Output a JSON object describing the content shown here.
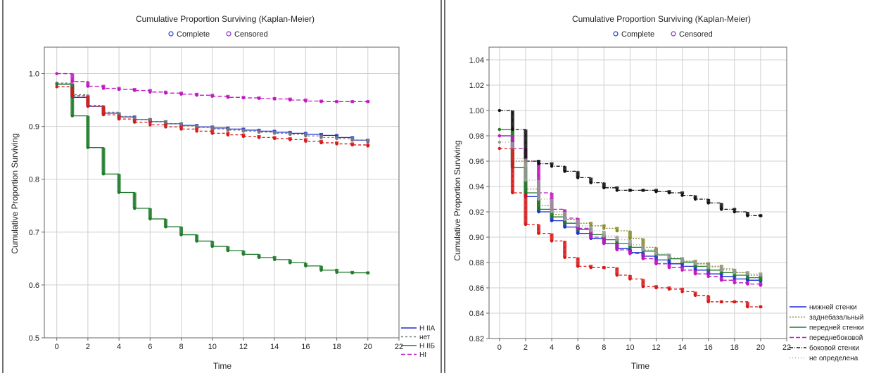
{
  "colors": {
    "panel_divider": "#6f6f6f",
    "grid": "#d0d0d0",
    "frame": "#666666",
    "complete_marker": "#1e3fc0",
    "censored_marker": "#8a2cc9"
  },
  "chart_data": [
    {
      "type": "line",
      "subtype": "kaplan-meier",
      "title": "Cumulative Proportion Surviving (Kaplan-Meier)",
      "marker_legend": {
        "complete": "Complete",
        "censored": "Censored"
      },
      "xlabel": "Time",
      "ylabel": "Cumulative Proportion Surviving",
      "xlim": [
        -0.8,
        22
      ],
      "ylim": [
        0.5,
        1.05
      ],
      "x_ticks": [
        0,
        2,
        4,
        6,
        8,
        10,
        12,
        14,
        16,
        18,
        20,
        22
      ],
      "y_ticks": [
        0.5,
        0.6,
        0.7,
        0.8,
        0.9,
        1.0
      ],
      "y_tick_labels": [
        "0.5",
        "0.6",
        "0.7",
        "0.8",
        "0.9",
        "1.0"
      ],
      "grid": true,
      "legend_position": "bottom-right outside",
      "series": [
        {
          "name": "H IIA",
          "color": "#1a2fd4",
          "dash": "",
          "x": [
            0,
            1,
            2,
            3,
            4,
            5,
            6,
            7,
            8,
            9,
            10,
            11,
            12,
            13,
            14,
            15,
            16,
            17,
            18,
            19,
            20
          ],
          "y": [
            0.98,
            0.955,
            0.938,
            0.925,
            0.918,
            0.913,
            0.909,
            0.905,
            0.902,
            0.899,
            0.897,
            0.895,
            0.893,
            0.891,
            0.889,
            0.887,
            0.885,
            0.883,
            0.879,
            0.874,
            0.871
          ]
        },
        {
          "name": "нет",
          "color": "#7a7a7a",
          "dash": "3,3",
          "x": [
            0,
            1,
            2,
            3,
            4,
            5,
            6,
            7,
            8,
            9,
            10,
            11,
            12,
            13,
            14,
            15,
            16,
            17,
            18,
            19,
            20
          ],
          "y": [
            0.982,
            0.96,
            0.94,
            0.927,
            0.919,
            0.913,
            0.909,
            0.905,
            0.901,
            0.898,
            0.895,
            0.893,
            0.891,
            0.889,
            0.887,
            0.885,
            0.882,
            0.879,
            0.877,
            0.874,
            0.872
          ]
        },
        {
          "name": "H IIБ",
          "color": "#1f7a2a",
          "dash": "",
          "x": [
            0,
            1,
            2,
            3,
            4,
            5,
            6,
            7,
            8,
            9,
            10,
            11,
            12,
            13,
            14,
            15,
            16,
            17,
            18,
            19,
            20
          ],
          "y": [
            0.98,
            0.92,
            0.86,
            0.81,
            0.775,
            0.745,
            0.725,
            0.71,
            0.695,
            0.683,
            0.673,
            0.665,
            0.658,
            0.652,
            0.648,
            0.642,
            0.636,
            0.628,
            0.624,
            0.623,
            0.623
          ]
        },
        {
          "name": "HI",
          "color": "#c018c0",
          "dash": "6,3",
          "x": [
            0,
            1,
            2,
            3,
            4,
            5,
            6,
            7,
            8,
            9,
            10,
            11,
            12,
            13,
            14,
            15,
            16,
            17,
            18,
            19,
            20
          ],
          "y": [
            1.0,
            0.985,
            0.976,
            0.972,
            0.97,
            0.968,
            0.965,
            0.963,
            0.961,
            0.959,
            0.957,
            0.955,
            0.954,
            0.953,
            0.952,
            0.95,
            0.948,
            0.947,
            0.947,
            0.947,
            0.947
          ]
        },
        {
          "name": "",
          "color": "#d81818",
          "dash": "4,3",
          "x": [
            0,
            1,
            2,
            3,
            4,
            5,
            6,
            7,
            8,
            9,
            10,
            11,
            12,
            13,
            14,
            15,
            16,
            17,
            18,
            19,
            20
          ],
          "y": [
            0.975,
            0.958,
            0.938,
            0.922,
            0.914,
            0.908,
            0.903,
            0.899,
            0.895,
            0.891,
            0.887,
            0.884,
            0.881,
            0.879,
            0.877,
            0.875,
            0.872,
            0.869,
            0.867,
            0.865,
            0.863
          ]
        }
      ]
    },
    {
      "type": "line",
      "subtype": "kaplan-meier",
      "title": "Cumulative Proportion Surviving (Kaplan-Meier)",
      "marker_legend": {
        "complete": "Complete",
        "censored": "Censored"
      },
      "xlabel": "Time",
      "ylabel": "Cumulative Proportion Surviving",
      "xlim": [
        -0.8,
        22
      ],
      "ylim": [
        0.82,
        1.05
      ],
      "x_ticks": [
        0,
        2,
        4,
        6,
        8,
        10,
        12,
        14,
        16,
        18,
        20,
        22
      ],
      "y_ticks": [
        0.82,
        0.84,
        0.86,
        0.88,
        0.9,
        0.92,
        0.94,
        0.96,
        0.98,
        1.0,
        1.02,
        1.04
      ],
      "y_tick_labels": [
        "0.82",
        "0.84",
        "0.86",
        "0.88",
        "0.90",
        "0.92",
        "0.94",
        "0.96",
        "0.98",
        "1.00",
        "1.02",
        "1.04"
      ],
      "grid": true,
      "legend_position": "bottom-right outside",
      "series": [
        {
          "name": "нижней стенки",
          "color": "#1a2fd4",
          "dash": "",
          "x": [
            0,
            1,
            2,
            3,
            4,
            5,
            6,
            7,
            8,
            9,
            10,
            11,
            12,
            13,
            14,
            15,
            16,
            17,
            18,
            19,
            20
          ],
          "y": [
            0.98,
            0.955,
            0.932,
            0.92,
            0.913,
            0.908,
            0.903,
            0.899,
            0.895,
            0.891,
            0.888,
            0.885,
            0.882,
            0.879,
            0.877,
            0.874,
            0.871,
            0.869,
            0.867,
            0.866,
            0.865
          ]
        },
        {
          "name": "заднебазальный",
          "color": "#8a8a2a",
          "dash": "2,2",
          "x": [
            0,
            1,
            2,
            3,
            4,
            5,
            6,
            7,
            8,
            9,
            10,
            11,
            12,
            13,
            14,
            15,
            16,
            17,
            18,
            19,
            20
          ],
          "y": [
            0.985,
            0.96,
            0.938,
            0.925,
            0.918,
            0.914,
            0.911,
            0.909,
            0.907,
            0.905,
            0.899,
            0.892,
            0.886,
            0.883,
            0.881,
            0.879,
            0.877,
            0.875,
            0.872,
            0.87,
            0.869
          ]
        },
        {
          "name": "передней стенки",
          "color": "#1f7a2a",
          "dash": "",
          "x": [
            0,
            1,
            2,
            3,
            4,
            5,
            6,
            7,
            8,
            9,
            10,
            11,
            12,
            13,
            14,
            15,
            16,
            17,
            18,
            19,
            20
          ],
          "y": [
            0.985,
            0.955,
            0.935,
            0.922,
            0.916,
            0.911,
            0.906,
            0.902,
            0.898,
            0.895,
            0.892,
            0.889,
            0.886,
            0.883,
            0.88,
            0.877,
            0.874,
            0.872,
            0.87,
            0.868,
            0.866
          ]
        },
        {
          "name": "переднебоковой",
          "color": "#c018c0",
          "dash": "6,3",
          "x": [
            0,
            1,
            2,
            3,
            4,
            5,
            6,
            7,
            8,
            9,
            10,
            11,
            12,
            13,
            14,
            15,
            16,
            17,
            18,
            19,
            20
          ],
          "y": [
            0.98,
            0.97,
            0.96,
            0.935,
            0.922,
            0.915,
            0.907,
            0.9,
            0.895,
            0.89,
            0.887,
            0.883,
            0.879,
            0.876,
            0.874,
            0.871,
            0.869,
            0.866,
            0.864,
            0.863,
            0.862
          ]
        },
        {
          "name": "боковой стенки",
          "color": "#111111",
          "dash": "5,2,1,2",
          "x": [
            0,
            1,
            2,
            3,
            4,
            5,
            6,
            7,
            8,
            9,
            10,
            11,
            12,
            13,
            14,
            15,
            16,
            17,
            18,
            19,
            20
          ],
          "y": [
            1.0,
            0.985,
            0.96,
            0.958,
            0.956,
            0.952,
            0.947,
            0.943,
            0.939,
            0.937,
            0.937,
            0.937,
            0.936,
            0.935,
            0.933,
            0.93,
            0.927,
            0.922,
            0.92,
            0.917,
            0.917
          ]
        },
        {
          "name": "не определена",
          "color": "#9a9a9a",
          "dash": "1,3",
          "x": [
            0,
            1,
            2,
            3,
            4,
            5,
            6,
            7,
            8,
            9,
            10,
            11,
            12,
            13,
            14,
            15,
            16,
            17,
            18,
            19,
            20
          ],
          "y": [
            0.975,
            0.962,
            0.945,
            0.93,
            0.92,
            0.914,
            0.909,
            0.905,
            0.901,
            0.898,
            0.894,
            0.89,
            0.887,
            0.884,
            0.881,
            0.879,
            0.876,
            0.874,
            0.872,
            0.871,
            0.87
          ]
        },
        {
          "name": "",
          "color": "#d81818",
          "dash": "4,3",
          "x": [
            0,
            1,
            2,
            3,
            4,
            5,
            6,
            7,
            8,
            9,
            10,
            11,
            12,
            13,
            14,
            15,
            16,
            17,
            18,
            19,
            20
          ],
          "y": [
            0.97,
            0.935,
            0.91,
            0.903,
            0.897,
            0.884,
            0.877,
            0.876,
            0.876,
            0.87,
            0.867,
            0.861,
            0.86,
            0.859,
            0.857,
            0.854,
            0.849,
            0.849,
            0.849,
            0.845,
            0.845
          ]
        }
      ]
    }
  ]
}
